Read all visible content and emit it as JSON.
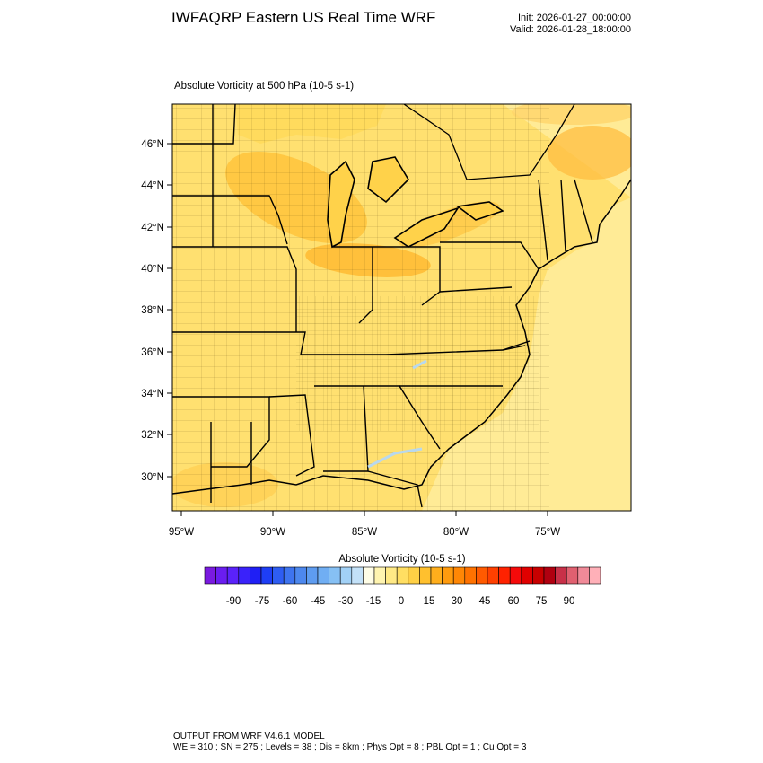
{
  "header": {
    "title": "IWFAQRP Eastern US Real Time WRF",
    "init": "Init: 2026-01-27_00:00:00",
    "valid": "Valid: 2026-01-28_18:00:00"
  },
  "plot": {
    "subtitle": "Absolute Vorticity at 500 hPa   (10-5 s-1)",
    "lat_labels": [
      "46°N",
      "44°N",
      "42°N",
      "40°N",
      "38°N",
      "36°N",
      "34°N",
      "32°N",
      "30°N"
    ],
    "lon_labels": [
      "95°W",
      "90°W",
      "85°W",
      "80°W",
      "75°W"
    ]
  },
  "colorbar": {
    "title": "Absolute Vorticity  (10-5 s-1)",
    "tick_labels": [
      "-90",
      "-75",
      "-60",
      "-45",
      "-30",
      "-15",
      "0",
      "15",
      "30",
      "45",
      "60",
      "75",
      "90"
    ],
    "colors": [
      "#7a1ae0",
      "#6a1df0",
      "#5a22fa",
      "#3a22fa",
      "#1f1ff5",
      "#1e3ef5",
      "#2e5df2",
      "#3e74ef",
      "#4d88ee",
      "#5e9cf0",
      "#70aef3",
      "#86c0f4",
      "#a2d1f6",
      "#c3e1f8",
      "#fffde6",
      "#fff4b0",
      "#ffe985",
      "#ffde62",
      "#ffd045",
      "#ffc02e",
      "#ffae1c",
      "#ff9b0e",
      "#ff8705",
      "#ff7200",
      "#ff5a00",
      "#ff4000",
      "#ff2200",
      "#f50a0a",
      "#e00000",
      "#c80000",
      "#b00010",
      "#c83048",
      "#e06070",
      "#f08a98",
      "#ffb0b8"
    ]
  },
  "footer": {
    "line1": "OUTPUT FROM WRF V4.6.1 MODEL",
    "line2": "WE = 310 ; SN = 275 ; Levels = 38 ; Dis = 8km ; Phys Opt = 8 ; PBL Opt = 1 ; Cu Opt = 3"
  }
}
